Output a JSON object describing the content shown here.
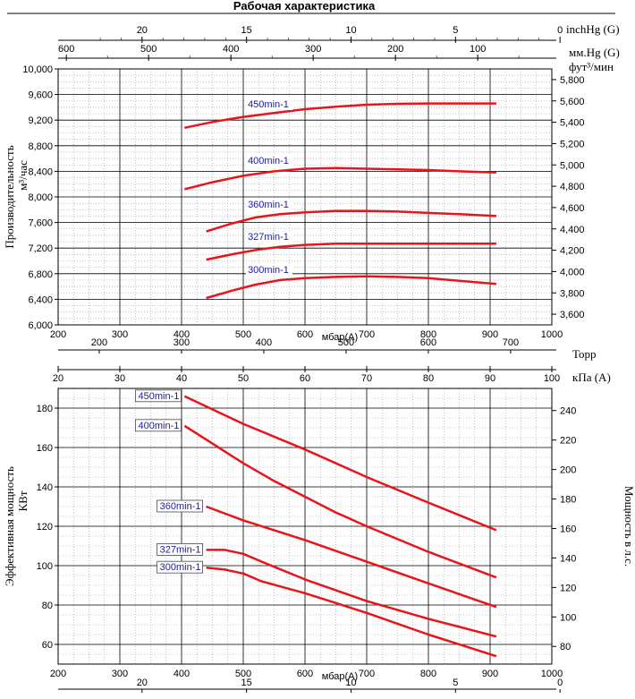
{
  "title": "Рабочая характеристика",
  "colors": {
    "curve": "#e8141c",
    "label_text": "#1a1aa8",
    "grid": "#9a9a9a",
    "grid_major": "#000000"
  },
  "chart_data": [
    {
      "type": "line",
      "name": "capacity",
      "ylabel": "Производительность",
      "yunit": "м³/час",
      "ylabel_right": "фут³/мин",
      "x_unit_inner": "мбар(A)",
      "xlim": [
        200,
        1000
      ],
      "ylim": [
        6000,
        10000
      ],
      "y2lim": [
        3500,
        5900
      ],
      "x_ticks": [
        "200",
        "300",
        "400",
        "500",
        "600",
        "700",
        "800",
        "900",
        "1000"
      ],
      "y_ticks": [
        "6,000",
        "6,400",
        "6,800",
        "7,200",
        "7,600",
        "8,000",
        "8,400",
        "8,800",
        "9,200",
        "9,600",
        "10,000"
      ],
      "y2_ticks": [
        "3,600",
        "3,800",
        "4,000",
        "4,200",
        "4,400",
        "4,600",
        "4,800",
        "5,000",
        "5,200",
        "5,400",
        "5,600",
        "5,800"
      ],
      "top_axis_1": {
        "unit": "inchHg (G)",
        "ticks": [
          "20",
          "15",
          "10",
          "5",
          "0"
        ]
      },
      "top_axis_2": {
        "unit": "мм.Hg (G)",
        "ticks": [
          "600",
          "500",
          "400",
          "300",
          "200",
          "100"
        ]
      },
      "series": [
        {
          "name": "450min-1",
          "x": [
            405,
            450,
            500,
            550,
            600,
            650,
            700,
            750,
            800,
            850,
            910
          ],
          "y": [
            9080,
            9170,
            9250,
            9310,
            9370,
            9410,
            9440,
            9455,
            9460,
            9460,
            9460
          ]
        },
        {
          "name": "400min-1",
          "x": [
            405,
            450,
            500,
            550,
            600,
            650,
            700,
            750,
            800,
            850,
            910
          ],
          "y": [
            8120,
            8230,
            8330,
            8400,
            8440,
            8450,
            8440,
            8430,
            8420,
            8400,
            8380
          ]
        },
        {
          "name": "360min-1",
          "x": [
            440,
            480,
            520,
            560,
            600,
            650,
            700,
            750,
            800,
            850,
            910
          ],
          "y": [
            7460,
            7580,
            7680,
            7730,
            7760,
            7780,
            7780,
            7770,
            7750,
            7730,
            7700
          ]
        },
        {
          "name": "327min-1",
          "x": [
            440,
            480,
            520,
            560,
            600,
            650,
            700,
            750,
            800,
            850,
            910
          ],
          "y": [
            7020,
            7100,
            7170,
            7220,
            7250,
            7270,
            7270,
            7270,
            7270,
            7270,
            7270
          ]
        },
        {
          "name": "300min-1",
          "x": [
            440,
            480,
            520,
            560,
            600,
            650,
            700,
            750,
            800,
            850,
            910
          ],
          "y": [
            6420,
            6530,
            6630,
            6700,
            6730,
            6750,
            6760,
            6750,
            6730,
            6690,
            6640
          ]
        }
      ]
    },
    {
      "type": "line",
      "name": "power",
      "ylabel": "Эффективная мощность",
      "yunit": "КВт",
      "ylabel_right": "Мощность в л.с.",
      "x_unit_inner": "мбар(A)",
      "xlim": [
        200,
        1000
      ],
      "ylim": [
        50,
        190
      ],
      "y2lim": [
        68,
        255
      ],
      "x_ticks": [
        "200",
        "300",
        "400",
        "500",
        "600",
        "700",
        "800",
        "900",
        "1000"
      ],
      "y_ticks": [
        "60",
        "80",
        "100",
        "120",
        "140",
        "160",
        "180"
      ],
      "y2_ticks": [
        "80",
        "100",
        "120",
        "140",
        "160",
        "180",
        "200",
        "220",
        "240"
      ],
      "top_axis_1": {
        "unit": "Торр",
        "ticks": [
          "200",
          "300",
          "400",
          "500",
          "600",
          "700"
        ]
      },
      "top_axis_2": {
        "unit": "кПа (A)",
        "ticks": [
          "20",
          "30",
          "40",
          "50",
          "60",
          "70",
          "80",
          "90",
          "100"
        ]
      },
      "bottom_axis": {
        "unit": "",
        "ticks": [
          "20",
          "15",
          "10",
          "5",
          "0"
        ]
      },
      "series": [
        {
          "name": "450min-1",
          "x": [
            405,
            500,
            600,
            700,
            800,
            910
          ],
          "y": [
            186,
            172,
            159,
            145,
            132,
            118
          ]
        },
        {
          "name": "400min-1",
          "x": [
            405,
            450,
            500,
            550,
            600,
            650,
            700,
            800,
            910
          ],
          "y": [
            171,
            162,
            152,
            143,
            135,
            127,
            120,
            107,
            94
          ]
        },
        {
          "name": "360min-1",
          "x": [
            440,
            500,
            600,
            700,
            800,
            910
          ],
          "y": [
            130,
            123,
            113,
            102,
            91,
            79
          ]
        },
        {
          "name": "327min-1",
          "x": [
            440,
            470,
            500,
            530,
            600,
            700,
            800,
            910
          ],
          "y": [
            108,
            108,
            106,
            102,
            93,
            82,
            73,
            64
          ]
        },
        {
          "name": "300min-1",
          "x": [
            440,
            470,
            500,
            530,
            600,
            700,
            800,
            910
          ],
          "y": [
            99,
            98,
            96,
            92,
            86,
            76,
            65,
            54
          ]
        }
      ]
    }
  ]
}
